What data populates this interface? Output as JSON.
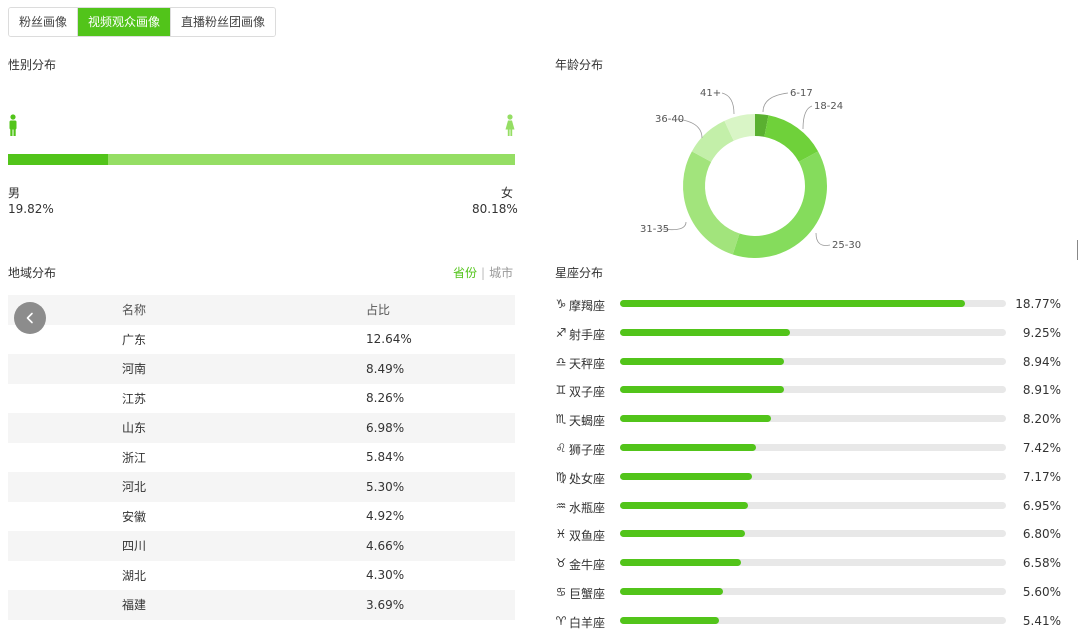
{
  "tabs": [
    {
      "label": "粉丝画像",
      "active": false
    },
    {
      "label": "视频观众画像",
      "active": true
    },
    {
      "label": "直播粉丝团画像",
      "active": false
    }
  ],
  "gender": {
    "title": "性别分布",
    "male_label": "男",
    "male_value": "19.82%",
    "male_ratio": 0.1982,
    "female_label": "女",
    "female_value": "80.18%",
    "colors": {
      "male": "#52c41a",
      "female": "#95de64"
    }
  },
  "region": {
    "title": "地域分布",
    "switch_province": "省份",
    "switch_city": "城市",
    "header_name": "名称",
    "header_ratio": "占比",
    "rows": [
      {
        "name": "广东",
        "value": "12.64%"
      },
      {
        "name": "河南",
        "value": "8.49%"
      },
      {
        "name": "江苏",
        "value": "8.26%"
      },
      {
        "name": "山东",
        "value": "6.98%"
      },
      {
        "name": "浙江",
        "value": "5.84%"
      },
      {
        "name": "河北",
        "value": "5.30%"
      },
      {
        "name": "安徽",
        "value": "4.92%"
      },
      {
        "name": "四川",
        "value": "4.66%"
      },
      {
        "name": "湖北",
        "value": "4.30%"
      },
      {
        "name": "福建",
        "value": "3.69%"
      }
    ]
  },
  "age": {
    "title": "年龄分布",
    "chart_data": {
      "type": "pie",
      "style": "donut",
      "categories": [
        "6-17",
        "18-24",
        "25-30",
        "31-35",
        "36-40",
        "41+"
      ],
      "values": [
        3,
        14,
        38,
        28,
        10,
        7
      ],
      "colors": [
        "#5ab030",
        "#6fd13a",
        "#85dc5c",
        "#a2e47c",
        "#c3efa9",
        "#d9f5c6"
      ]
    }
  },
  "zodiac": {
    "title": "星座分布",
    "max_ratio": 0.21,
    "items": [
      {
        "icon": "♑",
        "name": "摩羯座",
        "value": "18.77%",
        "ratio": 18.77
      },
      {
        "icon": "♐",
        "name": "射手座",
        "value": "9.25%",
        "ratio": 9.25
      },
      {
        "icon": "♎",
        "name": "天秤座",
        "value": "8.94%",
        "ratio": 8.94
      },
      {
        "icon": "♊",
        "name": "双子座",
        "value": "8.91%",
        "ratio": 8.91
      },
      {
        "icon": "♏",
        "name": "天蝎座",
        "value": "8.20%",
        "ratio": 8.2
      },
      {
        "icon": "♌",
        "name": "狮子座",
        "value": "7.42%",
        "ratio": 7.42
      },
      {
        "icon": "♍",
        "name": "处女座",
        "value": "7.17%",
        "ratio": 7.17
      },
      {
        "icon": "♒",
        "name": "水瓶座",
        "value": "6.95%",
        "ratio": 6.95
      },
      {
        "icon": "♓",
        "name": "双鱼座",
        "value": "6.80%",
        "ratio": 6.8
      },
      {
        "icon": "♉",
        "name": "金牛座",
        "value": "6.58%",
        "ratio": 6.58
      },
      {
        "icon": "♋",
        "name": "巨蟹座",
        "value": "5.60%",
        "ratio": 5.6
      },
      {
        "icon": "♈",
        "name": "白羊座",
        "value": "5.41%",
        "ratio": 5.41
      }
    ]
  }
}
